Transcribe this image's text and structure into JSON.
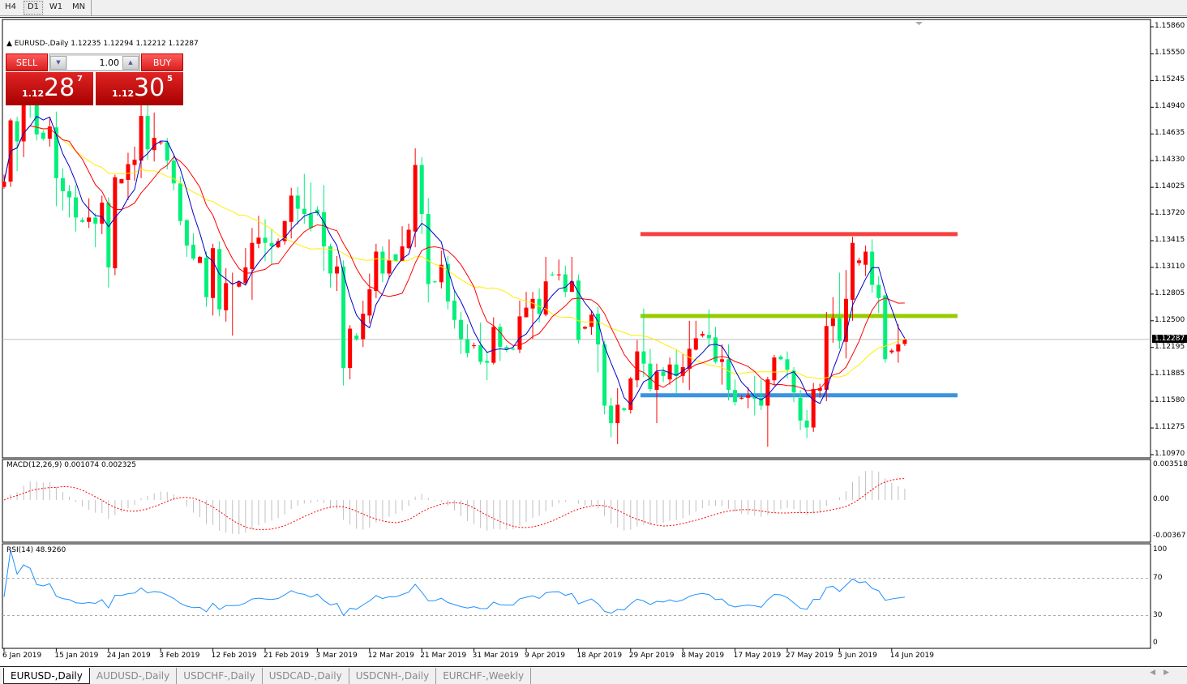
{
  "timeframes": [
    {
      "label": "H4",
      "selected": false
    },
    {
      "label": "D1",
      "selected": true
    },
    {
      "label": "W1",
      "selected": false
    },
    {
      "label": "MN",
      "selected": false
    }
  ],
  "chart": {
    "symbol_info": "EURUSD-,Daily  1.12235 1.12294 1.12212 1.12287",
    "current_price": "1.12287",
    "price_axis": [
      "1.15860",
      "1.15550",
      "1.15245",
      "1.14940",
      "1.14635",
      "1.14330",
      "1.14025",
      "1.13720",
      "1.13415",
      "1.13110",
      "1.12805",
      "1.12500",
      "1.12195",
      "1.11885",
      "1.11580",
      "1.11275",
      "1.10970"
    ],
    "price_range": [
      1.1097,
      1.1586
    ],
    "date_labels": [
      "6 Jan 2019",
      "15 Jan 2019",
      "24 Jan 2019",
      "3 Feb 2019",
      "12 Feb 2019",
      "21 Feb 2019",
      "3 Mar 2019",
      "12 Mar 2019",
      "21 Mar 2019",
      "31 Mar 2019",
      "9 Apr 2019",
      "18 Apr 2019",
      "29 Apr 2019",
      "8 May 2019",
      "17 May 2019",
      "27 May 2019",
      "5 Jun 2019",
      "14 Jun 2019"
    ],
    "colors": {
      "bull": "#ff0000",
      "bear": "#00f07a",
      "ma_fast": "#0000c8",
      "ma_mid": "#ff0000",
      "ma_slow": "#ffee00",
      "macd_hist": "#c0c0c0",
      "macd_signal": "#ff0000",
      "rsi": "#1e90ff"
    },
    "hlines": [
      {
        "price": 1.1349,
        "color": "#f84040",
        "from_bar": 98
      },
      {
        "price": 1.12555,
        "color": "#99cc00",
        "from_bar": 98
      },
      {
        "price": 1.11648,
        "color": "#3a94e0",
        "from_bar": 98
      }
    ],
    "candles": [
      [
        1.1403,
        1.1417,
        1.1401,
        1.1409
      ],
      [
        1.1409,
        1.1481,
        1.1403,
        1.1479
      ],
      [
        1.1478,
        1.1483,
        1.1421,
        1.1455
      ],
      [
        1.1455,
        1.1523,
        1.1437,
        1.1514
      ],
      [
        1.1514,
        1.1518,
        1.1482,
        1.1507
      ],
      [
        1.1511,
        1.1514,
        1.1456,
        1.1463
      ],
      [
        1.1465,
        1.1468,
        1.1456,
        1.1458
      ],
      [
        1.1458,
        1.1481,
        1.1449,
        1.1472
      ],
      [
        1.1471,
        1.1489,
        1.1381,
        1.1413
      ],
      [
        1.1413,
        1.1424,
        1.1376,
        1.1398
      ],
      [
        1.1398,
        1.1405,
        1.1368,
        1.1391
      ],
      [
        1.1391,
        1.1405,
        1.1352,
        1.1368
      ],
      [
        1.1365,
        1.1368,
        1.1362,
        1.1363
      ],
      [
        1.1363,
        1.139,
        1.1356,
        1.1368
      ],
      [
        1.1368,
        1.1373,
        1.1334,
        1.1361
      ],
      [
        1.1361,
        1.1393,
        1.1349,
        1.1385
      ],
      [
        1.1385,
        1.1391,
        1.1288,
        1.1311
      ],
      [
        1.131,
        1.1417,
        1.1302,
        1.1414
      ],
      [
        1.1407,
        1.1412,
        1.1407,
        1.1412
      ],
      [
        1.1411,
        1.1442,
        1.1388,
        1.1429
      ],
      [
        1.1428,
        1.1449,
        1.141,
        1.1434
      ],
      [
        1.1433,
        1.1501,
        1.1413,
        1.1484
      ],
      [
        1.1484,
        1.1513,
        1.1434,
        1.1446
      ],
      [
        1.1445,
        1.1488,
        1.1432,
        1.1459
      ],
      [
        1.1453,
        1.1456,
        1.1451,
        1.1454
      ],
      [
        1.1454,
        1.1459,
        1.1423,
        1.1433
      ],
      [
        1.1433,
        1.1439,
        1.1399,
        1.1407
      ],
      [
        1.1407,
        1.1415,
        1.1359,
        1.1364
      ],
      [
        1.1365,
        1.1366,
        1.1323,
        1.1336
      ],
      [
        1.1337,
        1.135,
        1.1319,
        1.1321
      ],
      [
        1.1316,
        1.1324,
        1.1316,
        1.1323
      ],
      [
        1.1322,
        1.1329,
        1.1266,
        1.1277
      ],
      [
        1.1276,
        1.1338,
        1.1256,
        1.1333
      ],
      [
        1.1332,
        1.1341,
        1.1255,
        1.1263
      ],
      [
        1.1262,
        1.131,
        1.1249,
        1.1293
      ],
      [
        1.1292,
        1.1305,
        1.1233,
        1.1293
      ],
      [
        1.1289,
        1.1296,
        1.1288,
        1.1294
      ],
      [
        1.1293,
        1.1333,
        1.1291,
        1.1311
      ],
      [
        1.1309,
        1.1356,
        1.1274,
        1.1339
      ],
      [
        1.1338,
        1.137,
        1.1333,
        1.1345
      ],
      [
        1.1345,
        1.1366,
        1.1318,
        1.1339
      ],
      [
        1.1339,
        1.1355,
        1.1315,
        1.1335
      ],
      [
        1.1334,
        1.1344,
        1.1333,
        1.1341
      ],
      [
        1.1341,
        1.1364,
        1.1337,
        1.1364
      ],
      [
        1.1363,
        1.1402,
        1.1344,
        1.1393
      ],
      [
        1.1393,
        1.1403,
        1.136,
        1.1378
      ],
      [
        1.1378,
        1.1418,
        1.1361,
        1.1372
      ],
      [
        1.1372,
        1.1408,
        1.1352,
        1.1356
      ],
      [
        1.1377,
        1.1381,
        1.137,
        1.1373
      ],
      [
        1.1374,
        1.1405,
        1.1307,
        1.1335
      ],
      [
        1.1335,
        1.1338,
        1.1288,
        1.1304
      ],
      [
        1.1304,
        1.1324,
        1.1284,
        1.1312
      ],
      [
        1.1312,
        1.1319,
        1.1176,
        1.1196
      ],
      [
        1.1196,
        1.1245,
        1.1183,
        1.1241
      ],
      [
        1.1233,
        1.1236,
        1.1227,
        1.1229
      ],
      [
        1.1229,
        1.1273,
        1.122,
        1.1258
      ],
      [
        1.1256,
        1.1304,
        1.1247,
        1.1286
      ],
      [
        1.1284,
        1.1338,
        1.1276,
        1.1329
      ],
      [
        1.1329,
        1.1335,
        1.1294,
        1.1304
      ],
      [
        1.1304,
        1.1343,
        1.1298,
        1.1319
      ],
      [
        1.1326,
        1.1326,
        1.1318,
        1.1318
      ],
      [
        1.1318,
        1.1358,
        1.1318,
        1.1335
      ],
      [
        1.1333,
        1.1361,
        1.1332,
        1.1354
      ],
      [
        1.1352,
        1.1447,
        1.1334,
        1.1428
      ],
      [
        1.1428,
        1.1437,
        1.1349,
        1.1372
      ],
      [
        1.1372,
        1.139,
        1.1271,
        1.1292
      ],
      [
        1.1295,
        1.1296,
        1.1293,
        1.1294
      ],
      [
        1.1294,
        1.133,
        1.1287,
        1.1314
      ],
      [
        1.1315,
        1.1324,
        1.1263,
        1.1272
      ],
      [
        1.1273,
        1.1285,
        1.1241,
        1.1251
      ],
      [
        1.1251,
        1.126,
        1.1212,
        1.1229
      ],
      [
        1.1229,
        1.1246,
        1.1208,
        1.1213
      ],
      [
        1.1221,
        1.1225,
        1.1218,
        1.1222
      ],
      [
        1.1222,
        1.1248,
        1.12,
        1.1203
      ],
      [
        1.1204,
        1.1215,
        1.1182,
        1.1202
      ],
      [
        1.1202,
        1.1254,
        1.12,
        1.1243
      ],
      [
        1.1243,
        1.1247,
        1.1204,
        1.122
      ],
      [
        1.122,
        1.1222,
        1.1214,
        1.1217
      ],
      [
        1.1218,
        1.1221,
        1.1216,
        1.1217
      ],
      [
        1.1217,
        1.1273,
        1.1213,
        1.1255
      ],
      [
        1.1254,
        1.1283,
        1.1254,
        1.1265
      ],
      [
        1.1264,
        1.1283,
        1.1229,
        1.1275
      ],
      [
        1.1275,
        1.1287,
        1.1248,
        1.1258
      ],
      [
        1.1257,
        1.1323,
        1.1255,
        1.1295
      ],
      [
        1.1303,
        1.1306,
        1.1301,
        1.1302
      ],
      [
        1.1302,
        1.132,
        1.1296,
        1.1303
      ],
      [
        1.1303,
        1.1313,
        1.1277,
        1.1283
      ],
      [
        1.1283,
        1.1323,
        1.1283,
        1.1295
      ],
      [
        1.1296,
        1.1303,
        1.1224,
        1.1228
      ],
      [
        1.1241,
        1.1244,
        1.124,
        1.1243
      ],
      [
        1.1243,
        1.1262,
        1.1234,
        1.1257
      ],
      [
        1.1258,
        1.1266,
        1.1191,
        1.1223
      ],
      [
        1.1223,
        1.1227,
        1.1143,
        1.1153
      ],
      [
        1.1153,
        1.1162,
        1.1117,
        1.1133
      ],
      [
        1.1133,
        1.1173,
        1.1109,
        1.1154
      ],
      [
        1.115,
        1.1151,
        1.1146,
        1.1148
      ],
      [
        1.1148,
        1.1186,
        1.1144,
        1.1184
      ],
      [
        1.1182,
        1.1228,
        1.1174,
        1.1215
      ],
      [
        1.1215,
        1.1264,
        1.1186,
        1.1201
      ],
      [
        1.1201,
        1.1218,
        1.1169,
        1.1172
      ],
      [
        1.1171,
        1.1201,
        1.1133,
        1.1192
      ],
      [
        1.1192,
        1.1197,
        1.118,
        1.1187
      ],
      [
        1.1183,
        1.1208,
        1.1177,
        1.12
      ],
      [
        1.12,
        1.1217,
        1.1167,
        1.1187
      ],
      [
        1.1187,
        1.1212,
        1.1179,
        1.1197
      ],
      [
        1.1195,
        1.125,
        1.1171,
        1.1218
      ],
      [
        1.1217,
        1.125,
        1.1216,
        1.123
      ],
      [
        1.1233,
        1.1238,
        1.1231,
        1.1235
      ],
      [
        1.1234,
        1.1263,
        1.122,
        1.123
      ],
      [
        1.1231,
        1.1243,
        1.1201,
        1.1203
      ],
      [
        1.1203,
        1.1223,
        1.1177,
        1.1206
      ],
      [
        1.1206,
        1.1223,
        1.1159,
        1.1171
      ],
      [
        1.1171,
        1.1183,
        1.1153,
        1.1157
      ],
      [
        1.1161,
        1.1165,
        1.116,
        1.1162
      ],
      [
        1.1162,
        1.1174,
        1.115,
        1.1165
      ],
      [
        1.1163,
        1.1187,
        1.1142,
        1.1161
      ],
      [
        1.1162,
        1.1183,
        1.1148,
        1.1153
      ],
      [
        1.1153,
        1.1186,
        1.1106,
        1.1183
      ],
      [
        1.1182,
        1.1211,
        1.1176,
        1.1208
      ],
      [
        1.1209,
        1.1211,
        1.1205,
        1.1206
      ],
      [
        1.1206,
        1.1215,
        1.1184,
        1.1194
      ],
      [
        1.1193,
        1.1197,
        1.1157,
        1.1168
      ],
      [
        1.1162,
        1.1171,
        1.1125,
        1.1136
      ],
      [
        1.1136,
        1.1148,
        1.1116,
        1.1128
      ],
      [
        1.1128,
        1.1179,
        1.1123,
        1.1172
      ],
      [
        1.117,
        1.1178,
        1.1162,
        1.1173
      ],
      [
        1.1171,
        1.126,
        1.1158,
        1.1244
      ],
      [
        1.1244,
        1.1277,
        1.1225,
        1.1253
      ],
      [
        1.1253,
        1.1305,
        1.1218,
        1.1227
      ],
      [
        1.1226,
        1.1308,
        1.1207,
        1.1275
      ],
      [
        1.1274,
        1.1346,
        1.125,
        1.1339
      ],
      [
        1.1316,
        1.1322,
        1.1313,
        1.1319
      ],
      [
        1.1314,
        1.1336,
        1.1301,
        1.1329
      ],
      [
        1.1329,
        1.1343,
        1.1282,
        1.1291
      ],
      [
        1.1291,
        1.1301,
        1.1259,
        1.1276
      ],
      [
        1.1279,
        1.128,
        1.1202,
        1.1206
      ],
      [
        1.1214,
        1.1218,
        1.1212,
        1.1216
      ],
      [
        1.1215,
        1.1246,
        1.1202,
        1.1223
      ],
      [
        1.12235,
        1.12294,
        1.12212,
        1.12287
      ]
    ]
  },
  "trade_panel": {
    "sell_label": "SELL",
    "buy_label": "BUY",
    "lot": "1.00",
    "sell_price": {
      "prefix": "1.12",
      "big": "28",
      "sup": "7"
    },
    "buy_price": {
      "prefix": "1.12",
      "big": "30",
      "sup": "5"
    },
    "down_arrow": "▼",
    "up_arrow": "▲"
  },
  "macd": {
    "title": "MACD(12,26,9) 0.001074 0.002325",
    "axis": [
      "0.003518",
      "0.00",
      "-0.00367"
    ],
    "range": [
      -0.00367,
      0.003518
    ]
  },
  "rsi": {
    "title": "RSI(14) 48.9260",
    "axis": [
      "100",
      "70",
      "30",
      "0"
    ],
    "levels": [
      70,
      30
    ]
  },
  "tabs": [
    {
      "label": "EURUSD-,Daily",
      "active": true
    },
    {
      "label": "AUDUSD-,Daily"
    },
    {
      "label": "USDCHF-,Daily"
    },
    {
      "label": "USDCAD-,Daily"
    },
    {
      "label": "USDCNH-,Daily"
    },
    {
      "label": "EURCHF-,Weekly"
    }
  ],
  "scroll": {
    "left": "◀",
    "right": "▶"
  }
}
